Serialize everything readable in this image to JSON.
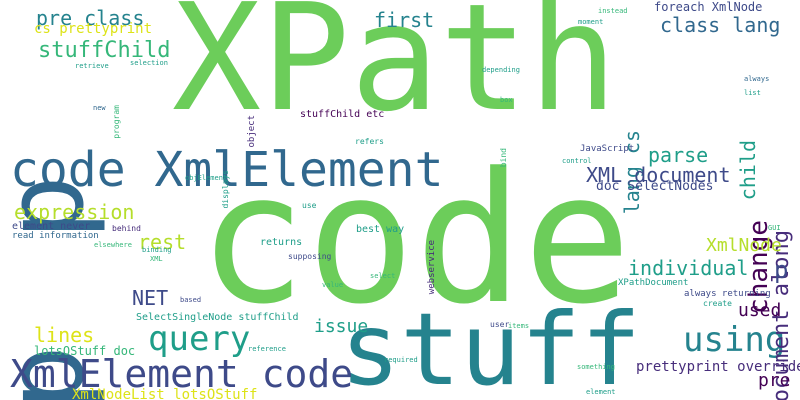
{
  "colors": {
    "background": "#ffffff",
    "green": "#6ccd5a",
    "lime": "#b5de2b",
    "teal": "#1f9e89",
    "aqua": "#25838e",
    "blue": "#31688e",
    "indigo": "#3e4a89",
    "purple": "#472d7b",
    "deep": "#440154",
    "yellow": "#dde318",
    "mint": "#35b779"
  },
  "words": [
    {
      "text": "XPath",
      "color": "green"
    },
    {
      "text": "code",
      "color": "green"
    },
    {
      "text": "stuff",
      "color": "aqua"
    },
    {
      "text": "p",
      "color": "blue"
    },
    {
      "text": "p",
      "color": "blue"
    },
    {
      "text": "code XmlElement",
      "color": "blue"
    },
    {
      "text": "XmlElement code",
      "color": "indigo"
    },
    {
      "text": "query",
      "color": "teal"
    },
    {
      "text": "using",
      "color": "aqua"
    },
    {
      "text": "pre class",
      "color": "aqua"
    },
    {
      "text": "stuffChild",
      "color": "mint"
    },
    {
      "text": "cs prettyprint",
      "color": "yellow"
    },
    {
      "text": "first",
      "color": "aqua"
    },
    {
      "text": "class lang",
      "color": "blue"
    },
    {
      "text": "lang cs",
      "color": "aqua"
    },
    {
      "text": "child",
      "color": "teal"
    },
    {
      "text": "change",
      "color": "deep"
    },
    {
      "text": "document along",
      "color": "purple"
    },
    {
      "text": "XML document",
      "color": "indigo"
    },
    {
      "text": "parse",
      "color": "teal"
    },
    {
      "text": "doc SelectNodes",
      "color": "indigo"
    },
    {
      "text": "expression",
      "color": "lime"
    },
    {
      "text": "rest",
      "color": "lime"
    },
    {
      "text": "XmlNode",
      "color": "lime"
    },
    {
      "text": "individual",
      "color": "teal"
    },
    {
      "text": "p",
      "color": "indigo"
    },
    {
      "text": "NET",
      "color": "indigo"
    },
    {
      "text": "issue",
      "color": "teal"
    },
    {
      "text": "used",
      "color": "deep"
    },
    {
      "text": "lines",
      "color": "yellow"
    },
    {
      "text": "lotsOStuff doc",
      "color": "mint"
    },
    {
      "text": "prettyprint override",
      "color": "purple"
    },
    {
      "text": "pre",
      "color": "deep"
    },
    {
      "text": "XmlNodeList lotsOStuff",
      "color": "yellow"
    },
    {
      "text": "foreach XmlNode",
      "color": "indigo"
    },
    {
      "text": "SelectSingleNode stuffChild",
      "color": "teal"
    },
    {
      "text": "stuffChild etc",
      "color": "deep"
    },
    {
      "text": "element never",
      "color": "indigo"
    },
    {
      "text": "read information",
      "color": "blue"
    },
    {
      "text": "returns",
      "color": "teal"
    },
    {
      "text": "best way",
      "color": "teal"
    },
    {
      "text": "always returning",
      "color": "indigo"
    },
    {
      "text": "XPathDocument",
      "color": "teal"
    },
    {
      "text": "JavaScript",
      "color": "indigo"
    },
    {
      "text": "instead",
      "color": "mint"
    },
    {
      "text": "moment",
      "color": "teal"
    },
    {
      "text": "retrieve",
      "color": "teal"
    },
    {
      "text": "selection",
      "color": "teal"
    },
    {
      "text": "program",
      "color": "mint"
    },
    {
      "text": "new",
      "color": "blue"
    },
    {
      "text": "object",
      "color": "purple"
    },
    {
      "text": "depending",
      "color": "teal"
    },
    {
      "text": "always",
      "color": "blue"
    },
    {
      "text": "list",
      "color": "teal"
    },
    {
      "text": "box",
      "color": "mint"
    },
    {
      "text": "refers",
      "color": "teal"
    },
    {
      "text": "bind",
      "color": "mint"
    },
    {
      "text": "control",
      "color": "teal"
    },
    {
      "text": "displays",
      "color": "teal"
    },
    {
      "text": "objElement",
      "color": "teal"
    },
    {
      "text": "use",
      "color": "teal"
    },
    {
      "text": "binding",
      "color": "teal"
    },
    {
      "text": "behind",
      "color": "purple"
    },
    {
      "text": "elsewhere",
      "color": "mint"
    },
    {
      "text": "XML",
      "color": "mint"
    },
    {
      "text": "supposing",
      "color": "indigo"
    },
    {
      "text": "value",
      "color": "mint"
    },
    {
      "text": "select",
      "color": "mint"
    },
    {
      "text": "webservice",
      "color": "purple"
    },
    {
      "text": "GUI",
      "color": "mint"
    },
    {
      "text": "based",
      "color": "indigo"
    },
    {
      "text": "create",
      "color": "teal"
    },
    {
      "text": "reference",
      "color": "teal"
    },
    {
      "text": "user",
      "color": "indigo"
    },
    {
      "text": "items",
      "color": "mint"
    },
    {
      "text": "required",
      "color": "teal"
    },
    {
      "text": "something",
      "color": "mint"
    },
    {
      "text": "element",
      "color": "teal"
    }
  ]
}
